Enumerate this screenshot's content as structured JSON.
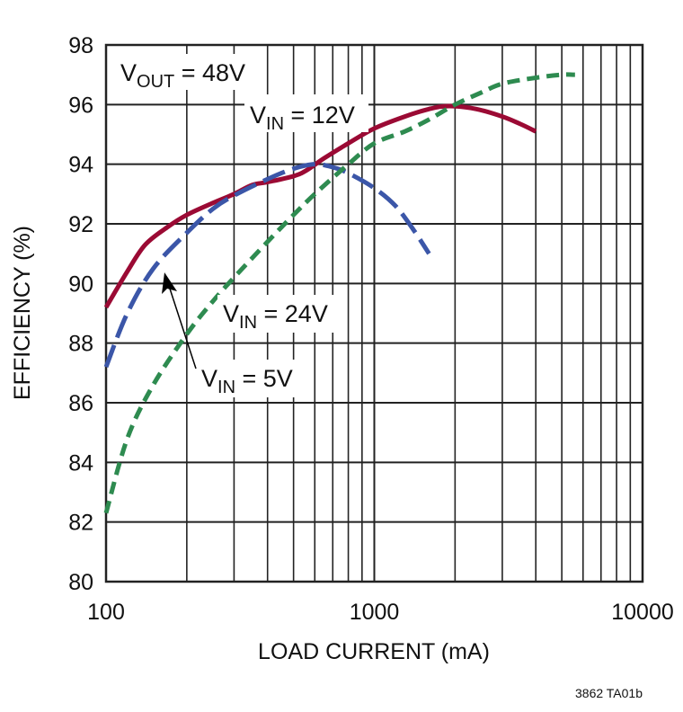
{
  "chart_data": {
    "type": "line",
    "xlabel": "LOAD CURRENT (mA)",
    "ylabel": "EFFICIENCY (%)",
    "xscale": "log",
    "xlim": [
      100,
      10000
    ],
    "ylim": [
      80,
      98
    ],
    "grid": true,
    "xticks": [
      "100",
      "1000",
      "10000"
    ],
    "yticks": [
      "80",
      "82",
      "84",
      "86",
      "88",
      "90",
      "92",
      "94",
      "96",
      "98"
    ],
    "annotations": {
      "vout": {
        "main": "V",
        "sub": "OUT",
        "rest": " = 48V"
      },
      "vin12": {
        "main": "V",
        "sub": "IN",
        "rest": " = 12V"
      },
      "vin24": {
        "main": "V",
        "sub": "IN",
        "rest": " = 24V"
      },
      "vin5": {
        "main": "V",
        "sub": "IN",
        "rest": " = 5V"
      }
    },
    "footnote": "3862 TA01b",
    "series": [
      {
        "name": "VIN = 12V",
        "color": "#9b0a34",
        "style": "solid",
        "x": [
          100,
          120,
          140,
          170,
          200,
          250,
          300,
          350,
          400,
          500,
          560,
          650,
          800,
          1000,
          1300,
          1600,
          1900,
          2400,
          3000,
          3500,
          4000
        ],
        "y": [
          89.2,
          90.4,
          91.3,
          91.9,
          92.3,
          92.7,
          93.0,
          93.3,
          93.4,
          93.6,
          93.8,
          94.2,
          94.7,
          95.2,
          95.6,
          95.85,
          95.95,
          95.85,
          95.6,
          95.35,
          95.1
        ]
      },
      {
        "name": "VIN = 5V",
        "color": "#3b56a8",
        "style": "long-dash",
        "x": [
          100,
          120,
          150,
          200,
          250,
          300,
          400,
          500,
          600,
          700,
          800,
          1000,
          1200,
          1400,
          1600
        ],
        "y": [
          87.2,
          89.0,
          90.5,
          91.7,
          92.5,
          92.95,
          93.5,
          93.85,
          94.0,
          93.9,
          93.7,
          93.2,
          92.6,
          91.8,
          91.0
        ]
      },
      {
        "name": "VIN = 24V",
        "color": "#2e8b50",
        "style": "short-dash",
        "x": [
          100,
          120,
          150,
          200,
          250,
          300,
          400,
          500,
          600,
          800,
          1000,
          1300,
          1600,
          2000,
          2500,
          3000,
          4000,
          5000,
          5600
        ],
        "y": [
          82.3,
          84.8,
          86.6,
          88.3,
          89.4,
          90.2,
          91.4,
          92.3,
          93.0,
          94.0,
          94.7,
          95.1,
          95.5,
          96.0,
          96.4,
          96.7,
          96.9,
          97.0,
          97.0
        ]
      }
    ]
  }
}
